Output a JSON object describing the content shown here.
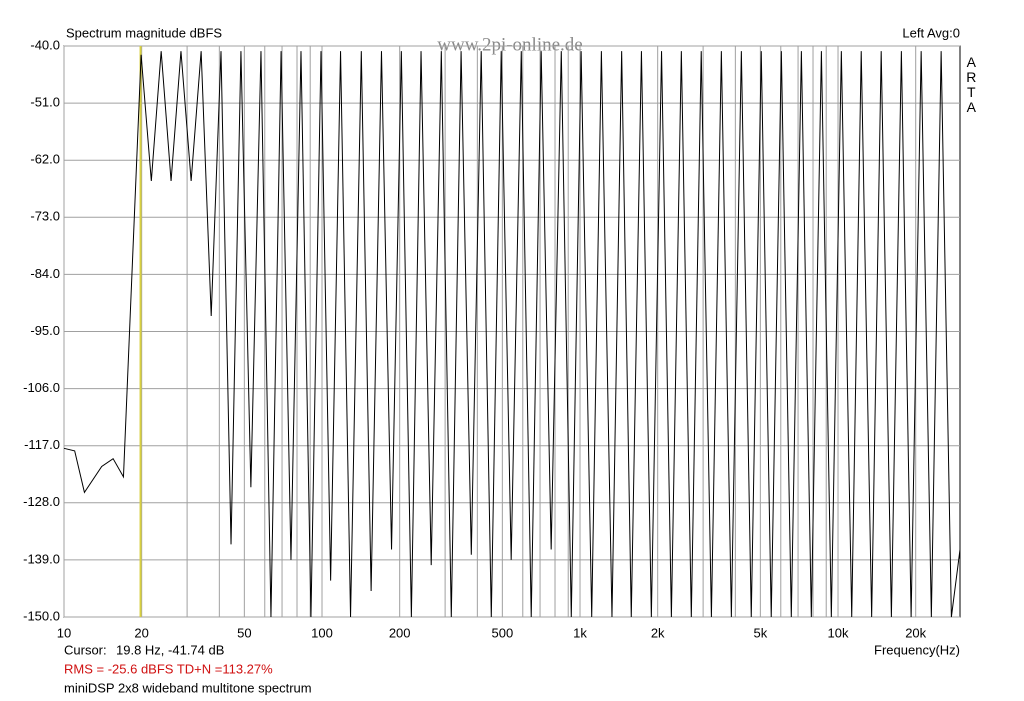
{
  "chart_data": {
    "type": "line",
    "title": "Spectrum magnitude dBFS",
    "channel": "Left  Avg:0",
    "watermark": "www.2pi-online.de",
    "brand": "ARTA",
    "x_label": "Frequency(Hz)",
    "cursor": {
      "label": "Cursor:",
      "text": "19.8 Hz, -41.74 dB",
      "x": 19.8,
      "color": "#d8d040"
    },
    "stats": "RMS =  -25.6 dBFS   TD+N =113.27%",
    "stats_color": "#d01010",
    "description": "miniDSP 2x8 wideband multitone spectrum",
    "x_scale": "log",
    "xlim": [
      10,
      29700
    ],
    "ylim": [
      -150,
      -40
    ],
    "xticks": [
      10,
      20,
      50,
      100,
      200,
      500,
      {
        "value": 1000,
        "label": "1k"
      },
      {
        "value": 2000,
        "label": "2k"
      },
      {
        "value": 5000,
        "label": "5k"
      },
      {
        "value": 10000,
        "label": "10k"
      },
      {
        "value": 20000,
        "label": "20k"
      }
    ],
    "xgrid_minor": [
      30,
      40,
      60,
      70,
      80,
      90,
      300,
      400,
      600,
      700,
      800,
      900,
      3000,
      4000,
      6000,
      7000,
      8000,
      9000
    ],
    "yticks": [
      {
        "value": -40,
        "label": "-40.0"
      },
      {
        "value": -51,
        "label": "-51.0"
      },
      {
        "value": -62,
        "label": "-62.0"
      },
      {
        "value": -73,
        "label": "-73.0"
      },
      {
        "value": -84,
        "label": "-84.0"
      },
      {
        "value": -95,
        "label": "-95.0"
      },
      {
        "value": -106,
        "label": "-106.0"
      },
      {
        "value": -117,
        "label": "-117.0"
      },
      {
        "value": -128,
        "label": "-128.0"
      },
      {
        "value": -139,
        "label": "-139.0"
      },
      {
        "value": -150,
        "label": "-150.0"
      }
    ],
    "grid": true,
    "series": [
      {
        "color": "#000000",
        "x": [
          10,
          11,
          12,
          14,
          15.5,
          17,
          19.9,
          21.8,
          23.8,
          26.0,
          28.4,
          31.1,
          34.0,
          37.2,
          40.6,
          44.4,
          48.5,
          53.0,
          58.0,
          63.4,
          69.4,
          75.8,
          82.9,
          90.6,
          99.1,
          108,
          118,
          129,
          142,
          155,
          170,
          186,
          203,
          222,
          242,
          265,
          290,
          317,
          346,
          379,
          414,
          453,
          495,
          541,
          592,
          647,
          707,
          773,
          846,
          925,
          1010,
          1110,
          1210,
          1330,
          1450,
          1580,
          1730,
          1890,
          2070,
          2260,
          2470,
          2700,
          2950,
          3230,
          3530,
          3860,
          4220,
          4610,
          5040,
          5510,
          6030,
          6590,
          7210,
          7880,
          8620,
          9420,
          10300,
          11300,
          12300,
          13500,
          14700,
          16100,
          17600,
          19200,
          21000,
          23000,
          25100,
          27500,
          29700
        ],
        "values": [
          -117.5,
          -118,
          -126,
          -121,
          -119.5,
          -123,
          -41.7,
          -66,
          -41,
          -66,
          -41,
          -66,
          -41,
          -92,
          -41,
          -136,
          -41,
          -125,
          -41,
          -150,
          -41,
          -139,
          -41,
          -150,
          -41,
          -143,
          -41,
          -150,
          -41,
          -145,
          -41,
          -137,
          -41,
          -150,
          -41,
          -140,
          -41,
          -150,
          -41,
          -138,
          -41,
          -150,
          -41,
          -139,
          -41,
          -150,
          -41,
          -137,
          -41,
          -150,
          -41,
          -150,
          -41,
          -150,
          -41,
          -150,
          -41,
          -150,
          -41,
          -150,
          -41,
          -150,
          -41,
          -150,
          -41,
          -150,
          -41,
          -150,
          -41,
          -150,
          -41,
          -150,
          -41,
          -150,
          -41,
          -150,
          -41,
          -150,
          -41,
          -150,
          -41,
          -150,
          -41,
          -150,
          -41,
          -150,
          -41,
          -150,
          -137
        ]
      }
    ]
  }
}
